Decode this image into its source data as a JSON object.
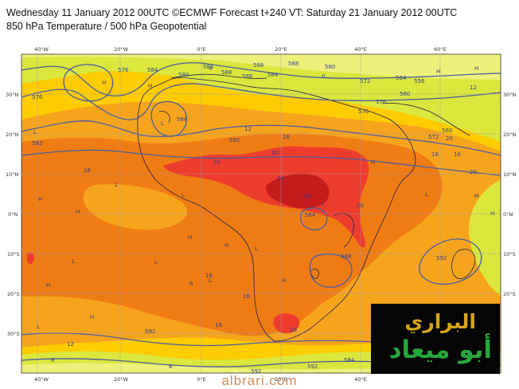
{
  "header": {
    "line1": "Wednesday 11 January 2012 00UTC ©ECMWF Forecast t+240 VT: Saturday 21 January 2012 00UTC",
    "line2": "850 hPa Temperature / 500 hPa Geopotential"
  },
  "map": {
    "top_lon_labels": [
      "40°W",
      "20°W",
      "0°E",
      "20°E",
      "40°E",
      "60°E"
    ],
    "bottom_lon_labels": [
      "40°W",
      "20°W",
      "0°E",
      "20°E",
      "40°E"
    ],
    "left_lat_labels": [
      "30°N",
      "20°N",
      "10°N",
      "0°N",
      "10°S",
      "20°S",
      "30°S"
    ],
    "right_lat_labels": [
      "30°N",
      "20°N",
      "10°N",
      "0°N",
      "10°S",
      "20°S"
    ],
    "geopotential_labels": [
      "576",
      "576",
      "584",
      "580",
      "584",
      "588",
      "588",
      "588",
      "584",
      "588",
      "580",
      "572",
      "564",
      "556",
      "560",
      "576",
      "576",
      "572",
      "560",
      "592",
      "588",
      "592",
      "588",
      "592",
      "592",
      "592",
      "584",
      "592",
      "584"
    ],
    "temperature_labels": [
      "16",
      "12",
      "16",
      "20",
      "24",
      "20",
      "24",
      "16",
      "8",
      "16",
      "16",
      "20",
      "16",
      "20",
      "8",
      "20",
      "20",
      "12",
      "8",
      "4",
      "0",
      "16",
      "12"
    ],
    "centre_markers": [
      "H",
      "H",
      "H",
      "L",
      "L",
      "L",
      "H",
      "L",
      "H",
      "H",
      "H",
      "L",
      "L",
      "H",
      "H",
      "L",
      "L",
      "L",
      "H",
      "L",
      "H",
      "H",
      "H",
      "H",
      "L"
    ],
    "colors": {
      "ocean": "#ffcc00",
      "cool": "#d9e83a",
      "warm": "#f5a21a",
      "hot": "#f07a12",
      "veryhot": "#ef3d2b",
      "extreme": "#c61c1c",
      "contour": "#4a5da0"
    }
  },
  "logo": {
    "line1": "البراري",
    "line2": "أبو ميعاد"
  },
  "footer": "albrari.com"
}
